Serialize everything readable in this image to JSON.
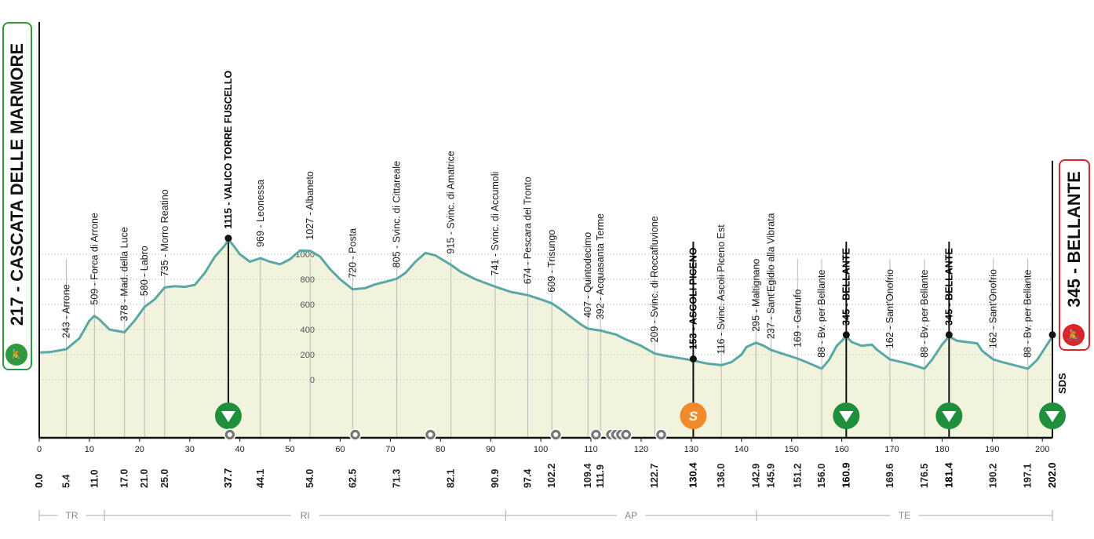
{
  "colors": {
    "profile_line": "#5aa7a7",
    "profile_fill": "#f1f3dc",
    "start_border": "#2e9a3a",
    "finish_border": "#d9262b",
    "kom": "#1f8f3c",
    "sprint": "#f08a2c"
  },
  "start": {
    "label": "217 - CASCATA DELLE MARMORE",
    "icon": "cyclist-icon"
  },
  "finish": {
    "label": "345 - BELLANTE",
    "icon": "cyclist-icon"
  },
  "sponsor": "SDS",
  "chart_data": {
    "type": "area",
    "x_unit": "km",
    "xlim": [
      0,
      202
    ],
    "elev_ticks": [
      0,
      200,
      400,
      600,
      800,
      1000
    ],
    "km_ticks": [
      0,
      10,
      20,
      30,
      40,
      50,
      60,
      70,
      80,
      90,
      100,
      110,
      120,
      130,
      140,
      150,
      160,
      170,
      180,
      190,
      200
    ],
    "profile": [
      [
        0,
        217
      ],
      [
        2,
        220
      ],
      [
        5.4,
        243
      ],
      [
        8,
        330
      ],
      [
        10,
        470
      ],
      [
        11,
        509
      ],
      [
        12,
        480
      ],
      [
        14,
        400
      ],
      [
        17,
        378
      ],
      [
        19,
        470
      ],
      [
        21,
        580
      ],
      [
        23,
        640
      ],
      [
        25,
        735
      ],
      [
        27,
        745
      ],
      [
        29,
        740
      ],
      [
        31,
        755
      ],
      [
        33,
        850
      ],
      [
        35,
        980
      ],
      [
        37,
        1070
      ],
      [
        37.7,
        1115
      ],
      [
        38.5,
        1080
      ],
      [
        40,
        1000
      ],
      [
        42,
        940
      ],
      [
        44.1,
        969
      ],
      [
        46,
        940
      ],
      [
        48,
        920
      ],
      [
        50,
        960
      ],
      [
        52,
        1030
      ],
      [
        54,
        1027
      ],
      [
        56,
        980
      ],
      [
        58,
        880
      ],
      [
        60,
        800
      ],
      [
        62.5,
        720
      ],
      [
        65,
        730
      ],
      [
        67,
        760
      ],
      [
        69,
        780
      ],
      [
        71.3,
        805
      ],
      [
        73,
        850
      ],
      [
        75,
        940
      ],
      [
        77,
        1010
      ],
      [
        79,
        990
      ],
      [
        82.1,
        915
      ],
      [
        84,
        860
      ],
      [
        87,
        800
      ],
      [
        90.9,
        741
      ],
      [
        94,
        700
      ],
      [
        97.4,
        674
      ],
      [
        100,
        640
      ],
      [
        102.2,
        609
      ],
      [
        104,
        560
      ],
      [
        106,
        500
      ],
      [
        108,
        440
      ],
      [
        109.4,
        407
      ],
      [
        111.9,
        392
      ],
      [
        113,
        380
      ],
      [
        115,
        360
      ],
      [
        117,
        320
      ],
      [
        120,
        270
      ],
      [
        122.7,
        209
      ],
      [
        125,
        190
      ],
      [
        128,
        170
      ],
      [
        130.4,
        153
      ],
      [
        133,
        130
      ],
      [
        136,
        116
      ],
      [
        138,
        140
      ],
      [
        140,
        200
      ],
      [
        141,
        260
      ],
      [
        142.9,
        295
      ],
      [
        144.5,
        270
      ],
      [
        145.9,
        237
      ],
      [
        148,
        210
      ],
      [
        151.2,
        169
      ],
      [
        153,
        140
      ],
      [
        156,
        88
      ],
      [
        157.5,
        160
      ],
      [
        159,
        270
      ],
      [
        160.9,
        345
      ],
      [
        162,
        300
      ],
      [
        164,
        270
      ],
      [
        166,
        280
      ],
      [
        167,
        240
      ],
      [
        169.6,
        162
      ],
      [
        172,
        140
      ],
      [
        174,
        120
      ],
      [
        176.5,
        88
      ],
      [
        178,
        160
      ],
      [
        180,
        280
      ],
      [
        181.4,
        345
      ],
      [
        183,
        310
      ],
      [
        185,
        300
      ],
      [
        187,
        290
      ],
      [
        188,
        230
      ],
      [
        190.2,
        162
      ],
      [
        192,
        140
      ],
      [
        194,
        120
      ],
      [
        197.1,
        88
      ],
      [
        199,
        160
      ],
      [
        202,
        345
      ]
    ],
    "waypoints": [
      {
        "km": "5.4",
        "x": 5.4,
        "name": "243 - Arrone"
      },
      {
        "km": "11.0",
        "x": 11.0,
        "name": "509 - Forca di Arrone"
      },
      {
        "km": "17.0",
        "x": 17.0,
        "name": "378 - Mad. della Luce"
      },
      {
        "km": "21.0",
        "x": 21.0,
        "name": "580 - Labro"
      },
      {
        "km": "25.0",
        "x": 25.0,
        "name": "735 - Morro Reatino"
      },
      {
        "km": "37.7",
        "x": 37.7,
        "name": "1115 - VALICO TORRE FUSCELLO",
        "bold": true
      },
      {
        "km": "44.1",
        "x": 44.1,
        "name": "969 - Leonessa"
      },
      {
        "km": "54.0",
        "x": 54.0,
        "name": "1027 - Albaneto"
      },
      {
        "km": "62.5",
        "x": 62.5,
        "name": "720 - Posta"
      },
      {
        "km": "71.3",
        "x": 71.3,
        "name": "805 - Svinc. di Cittareale"
      },
      {
        "km": "82.1",
        "x": 82.1,
        "name": "915 - Svinc. di Amatrice"
      },
      {
        "km": "90.9",
        "x": 90.9,
        "name": "741 - Svinc. di Accumoli"
      },
      {
        "km": "97.4",
        "x": 97.4,
        "name": "674 - Pescara del Tronto"
      },
      {
        "km": "102.2",
        "x": 102.2,
        "name": "609 - Trisungo"
      },
      {
        "km": "109.4",
        "x": 109.4,
        "name": "407 - Quintodecimo"
      },
      {
        "km": "111.9",
        "x": 111.9,
        "name": "392 - Acquasanta Terme"
      },
      {
        "km": "122.7",
        "x": 122.7,
        "name": "209 - Svinc. di Roccafluvione"
      },
      {
        "km": "130.4",
        "x": 130.4,
        "name": "153 - ASCOLI PICENO",
        "bold": true
      },
      {
        "km": "136.0",
        "x": 136.0,
        "name": "116 - Svinc. Ascoli PIceno Est"
      },
      {
        "km": "142.9",
        "x": 142.9,
        "name": "295 - Maltignano"
      },
      {
        "km": "145.9",
        "x": 145.9,
        "name": "237 - Sant'Egidio alla Vibrata"
      },
      {
        "km": "151.2",
        "x": 151.2,
        "name": "169 - Garrufo"
      },
      {
        "km": "156.0",
        "x": 156.0,
        "name": "88 - Bv. per Bellante"
      },
      {
        "km": "160.9",
        "x": 160.9,
        "name": "345 - BELLANTE",
        "bold": true
      },
      {
        "km": "169.6",
        "x": 169.6,
        "name": "162 - Sant'Onofrio"
      },
      {
        "km": "176.5",
        "x": 176.5,
        "name": "88 - Bv. per Bellante"
      },
      {
        "km": "181.4",
        "x": 181.4,
        "name": "345 - BELLANTE",
        "bold": true
      },
      {
        "km": "190.2",
        "x": 190.2,
        "name": "162 - Sant'Onofrio"
      },
      {
        "km": "197.1",
        "x": 197.1,
        "name": "88 - Bv. per Bellante"
      }
    ],
    "start_km": "0.0",
    "finish_km": "202.0",
    "kom_at": [
      37.7,
      160.9,
      181.4,
      202.0
    ],
    "sprint_at": [
      130.4
    ],
    "tunnels_at": [
      38,
      63,
      78,
      103,
      111,
      114,
      115,
      116,
      117,
      124
    ],
    "regions": [
      {
        "name": "TR",
        "from": 0,
        "to": 13
      },
      {
        "name": "RI",
        "from": 13,
        "to": 93
      },
      {
        "name": "AP",
        "from": 93,
        "to": 143
      },
      {
        "name": "TE",
        "from": 143,
        "to": 202
      }
    ]
  }
}
